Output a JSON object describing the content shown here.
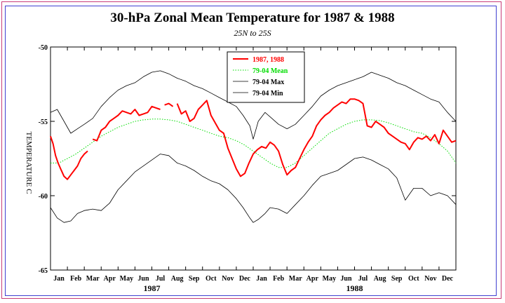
{
  "chart_data": {
    "type": "line",
    "title": "30-hPa Zonal Mean Temperature for 1987 & 1988",
    "subtitle": "25N to 25S",
    "ylabel": "TEMPERATURE C",
    "xlabel": "",
    "ylim": [
      -65,
      -50
    ],
    "yticks": [
      -50,
      -55,
      -60,
      -65
    ],
    "ytick_labels": [
      "-50",
      "-55",
      "-60",
      "-65"
    ],
    "xlim": [
      0,
      24
    ],
    "month_labels": [
      "Jan",
      "Feb",
      "Mar",
      "Apr",
      "May",
      "Jun",
      "Jul",
      "Aug",
      "Sep",
      "Oct",
      "Nov",
      "Dec",
      "Jan",
      "Feb",
      "Mar",
      "Apr",
      "May",
      "Jun",
      "Jul",
      "Aug",
      "Sep",
      "Oct",
      "Nov",
      "Dec"
    ],
    "year_labels": [
      {
        "label": "1987",
        "month_center": 6
      },
      {
        "label": "1988",
        "month_center": 18
      }
    ],
    "legend_position": "top-center",
    "legend": [
      {
        "label": "1987, 1988",
        "color": "#ff0000",
        "style": "solid",
        "series": "obs"
      },
      {
        "label": "79-04 Mean",
        "color": "#00dd00",
        "style": "dotted",
        "series": "mean"
      },
      {
        "label": "79-04 Max",
        "color": "#000000",
        "style": "thin",
        "series": "max"
      },
      {
        "label": "79-04 Min",
        "color": "#000000",
        "style": "thin",
        "series": "min"
      }
    ],
    "series": [
      {
        "id": "max",
        "name": "79-04 Max",
        "x": [
          0,
          0.4,
          0.8,
          1.2,
          1.6,
          2.0,
          2.5,
          3.0,
          3.5,
          4.0,
          4.5,
          5.0,
          5.5,
          6.0,
          6.5,
          7.0,
          7.5,
          8.0,
          8.5,
          9.0,
          9.5,
          10.0,
          10.5,
          11.0,
          11.4,
          11.8,
          12.0,
          12.3,
          12.7,
          13.0,
          13.5,
          14.0,
          14.5,
          15.0,
          15.5,
          16.0,
          16.5,
          17.0,
          17.5,
          18.0,
          18.5,
          19.0,
          19.5,
          20.0,
          20.5,
          21.0,
          21.5,
          22.0,
          22.5,
          23.0,
          23.5,
          24.0
        ],
        "values": [
          -54.4,
          -54.2,
          -55.0,
          -55.8,
          -55.5,
          -55.2,
          -54.8,
          -54.0,
          -53.4,
          -52.9,
          -52.6,
          -52.4,
          -52.0,
          -51.7,
          -51.6,
          -51.8,
          -52.1,
          -52.3,
          -52.6,
          -52.8,
          -53.1,
          -53.4,
          -53.7,
          -54.0,
          -54.6,
          -55.3,
          -56.2,
          -55.0,
          -54.4,
          -54.7,
          -55.2,
          -55.5,
          -55.2,
          -54.6,
          -54.0,
          -53.3,
          -52.9,
          -52.6,
          -52.4,
          -52.2,
          -52.0,
          -51.7,
          -51.9,
          -52.1,
          -52.4,
          -52.6,
          -52.9,
          -53.2,
          -53.5,
          -53.7,
          -54.4,
          -55.0
        ]
      },
      {
        "id": "min",
        "name": "79-04 Min",
        "x": [
          0,
          0.4,
          0.8,
          1.2,
          1.6,
          2.0,
          2.5,
          3.0,
          3.5,
          4.0,
          4.5,
          5.0,
          5.5,
          6.0,
          6.5,
          7.0,
          7.5,
          8.0,
          8.5,
          9.0,
          9.5,
          10.0,
          10.5,
          11.0,
          11.4,
          11.8,
          12.0,
          12.3,
          12.7,
          13.0,
          13.5,
          14.0,
          14.5,
          15.0,
          15.5,
          16.0,
          16.5,
          17.0,
          17.5,
          18.0,
          18.5,
          19.0,
          19.5,
          20.0,
          20.5,
          21.0,
          21.5,
          22.0,
          22.5,
          23.0,
          23.5,
          24.0
        ],
        "values": [
          -60.8,
          -61.5,
          -61.8,
          -61.7,
          -61.2,
          -61.0,
          -60.9,
          -61.0,
          -60.5,
          -59.6,
          -59.0,
          -58.4,
          -58.0,
          -57.6,
          -57.2,
          -57.3,
          -57.8,
          -58.0,
          -58.3,
          -58.7,
          -59.0,
          -59.2,
          -59.6,
          -60.2,
          -60.8,
          -61.5,
          -61.8,
          -61.6,
          -61.2,
          -60.8,
          -60.9,
          -61.2,
          -60.6,
          -60.0,
          -59.3,
          -58.7,
          -58.5,
          -58.3,
          -57.9,
          -57.5,
          -57.4,
          -57.6,
          -57.9,
          -58.2,
          -58.8,
          -60.3,
          -59.5,
          -59.5,
          -60.0,
          -59.8,
          -60.0,
          -60.6
        ]
      },
      {
        "id": "mean",
        "name": "79-04 Mean",
        "x": [
          0,
          0.5,
          1.0,
          1.5,
          2.0,
          2.5,
          3.0,
          3.5,
          4.0,
          4.5,
          5.0,
          5.5,
          6.0,
          6.5,
          7.0,
          7.5,
          8.0,
          8.5,
          9.0,
          9.5,
          10.0,
          10.5,
          11.0,
          11.5,
          12.0,
          12.5,
          13.0,
          13.5,
          14.0,
          14.5,
          15.0,
          15.5,
          16.0,
          16.5,
          17.0,
          17.5,
          18.0,
          18.5,
          19.0,
          19.5,
          20.0,
          20.5,
          21.0,
          21.5,
          22.0,
          22.5,
          23.0,
          23.5,
          24.0
        ],
        "values": [
          -57.8,
          -57.8,
          -57.5,
          -57.2,
          -56.8,
          -56.4,
          -56.0,
          -55.7,
          -55.4,
          -55.2,
          -55.0,
          -54.9,
          -54.85,
          -54.85,
          -54.9,
          -55.0,
          -55.2,
          -55.4,
          -55.6,
          -55.8,
          -56.0,
          -56.1,
          -56.3,
          -56.6,
          -57.0,
          -57.4,
          -57.8,
          -58.1,
          -58.1,
          -57.8,
          -57.3,
          -56.8,
          -56.3,
          -55.8,
          -55.5,
          -55.2,
          -55.0,
          -54.9,
          -54.9,
          -54.95,
          -55.1,
          -55.3,
          -55.5,
          -55.7,
          -55.8,
          -56.1,
          -56.5,
          -57.0,
          -57.8
        ]
      },
      {
        "id": "obs",
        "name": "1987, 1988",
        "x": [
          0,
          0.15,
          0.3,
          0.45,
          0.6,
          0.8,
          1.0,
          1.2,
          1.4,
          1.6,
          1.8,
          2.0,
          2.2,
          2.5,
          2.75,
          3.0,
          3.25,
          3.5,
          3.75,
          4.0,
          4.25,
          4.5,
          4.75,
          5.0,
          5.25,
          5.5,
          5.75,
          6.0,
          6.25,
          6.5,
          6.75,
          7.0,
          7.25,
          7.5,
          7.75,
          8.0,
          8.25,
          8.5,
          8.75,
          9.0,
          9.25,
          9.5,
          9.75,
          10.0,
          10.25,
          10.5,
          10.75,
          11.0,
          11.25,
          11.5,
          11.75,
          12.0,
          12.25,
          12.5,
          12.75,
          13.0,
          13.25,
          13.5,
          13.75,
          14.0,
          14.25,
          14.5,
          14.75,
          15.0,
          15.25,
          15.5,
          15.75,
          16.0,
          16.25,
          16.5,
          16.75,
          17.0,
          17.25,
          17.5,
          17.75,
          18.0,
          18.25,
          18.5,
          18.75,
          19.0,
          19.25,
          19.5,
          19.75,
          20.0,
          20.25,
          20.5,
          20.75,
          21.0,
          21.25,
          21.5,
          21.75,
          22.0,
          22.25,
          22.5,
          22.75,
          23.0,
          23.25,
          23.5,
          23.75,
          24.0
        ],
        "values": [
          -56.0,
          -56.5,
          -57.3,
          -57.8,
          -58.2,
          -58.7,
          -58.9,
          -58.6,
          -58.3,
          -58.0,
          -57.5,
          -57.2,
          -57.0,
          -56.2,
          -56.3,
          -55.6,
          -55.4,
          -55.0,
          -54.8,
          -54.6,
          -54.3,
          -54.4,
          -54.5,
          -54.2,
          -54.6,
          -54.5,
          -54.4,
          -54.0,
          -54.1,
          -54.2,
          -53.9,
          -53.8,
          -54.0,
          -53.8,
          -54.5,
          -54.3,
          -55.0,
          -54.8,
          -54.2,
          -53.9,
          -53.6,
          -54.6,
          -55.1,
          -55.6,
          -55.8,
          -56.8,
          -57.5,
          -58.2,
          -58.7,
          -58.5,
          -57.8,
          -57.2,
          -56.9,
          -56.7,
          -56.8,
          -56.4,
          -56.6,
          -57.0,
          -57.9,
          -58.6,
          -58.3,
          -58.1,
          -57.5,
          -56.9,
          -56.4,
          -56.0,
          -55.3,
          -54.9,
          -54.6,
          -54.4,
          -54.1,
          -53.9,
          -53.7,
          -53.8,
          -53.5,
          -53.5,
          -53.6,
          -53.8,
          -55.3,
          -55.4,
          -55.0,
          -55.2,
          -55.4,
          -55.8,
          -56.0,
          -56.2,
          -56.4,
          -56.5,
          -56.9,
          -56.4,
          -56.1,
          -56.2,
          -56.0,
          -56.3,
          -55.9,
          -56.5,
          -55.6,
          -56.0,
          -56.4,
          -56.3
        ],
        "gaps_after_index": [
          12,
          29,
          32
        ]
      }
    ]
  }
}
